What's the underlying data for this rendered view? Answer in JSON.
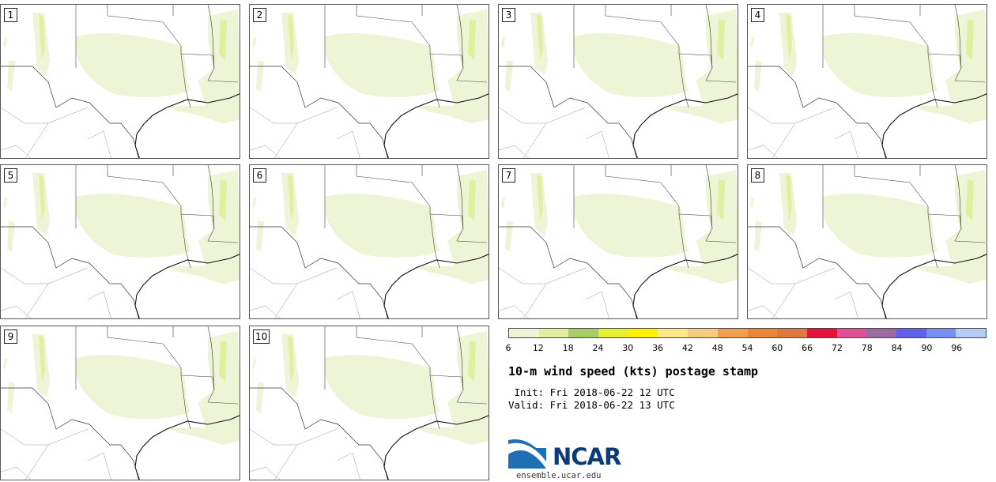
{
  "members": [
    {
      "label": "1"
    },
    {
      "label": "2"
    },
    {
      "label": "3"
    },
    {
      "label": "4"
    },
    {
      "label": "5"
    },
    {
      "label": "6"
    },
    {
      "label": "7"
    },
    {
      "label": "8"
    },
    {
      "label": "9"
    },
    {
      "label": "10"
    }
  ],
  "colorbar": {
    "ticks": [
      "6",
      "12",
      "18",
      "24",
      "30",
      "36",
      "42",
      "48",
      "54",
      "60",
      "66",
      "72",
      "78",
      "84",
      "90",
      "96"
    ],
    "colors": [
      "#eef4d6",
      "#e0f0a0",
      "#a8cc68",
      "#e8ee30",
      "#fff000",
      "#fde88a",
      "#f8cc80",
      "#eea050",
      "#e8883a",
      "#e07840",
      "#e8103c",
      "#e05098",
      "#9a6aa0",
      "#6060e8",
      "#7890f0",
      "#b8ccf8"
    ]
  },
  "title": "10-m wind speed (kts) postage stamp",
  "init": " Init: Fri 2018-06-22 12 UTC",
  "valid": "Valid: Fri 2018-06-22 13 UTC",
  "logo": {
    "word": "NCAR",
    "url": "ensemble.ucar.edu"
  }
}
